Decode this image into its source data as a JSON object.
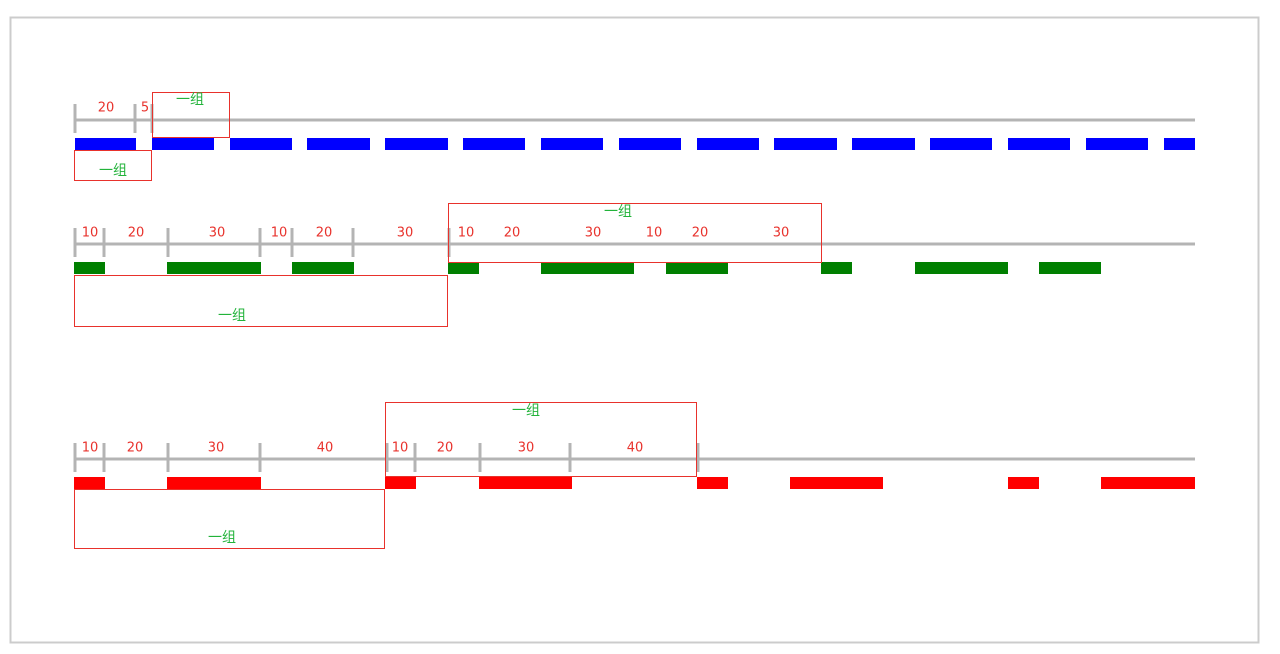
{
  "rows": [
    {
      "segments": [
        20,
        5
      ],
      "group_top": "一组",
      "group_bottom": "一组"
    },
    {
      "segments": [
        10,
        20,
        30,
        10,
        20,
        30,
        10,
        20,
        30,
        10,
        20,
        30
      ],
      "group_top": "一组",
      "group_bottom": "一组"
    },
    {
      "segments": [
        10,
        20,
        30,
        40,
        10,
        20,
        30,
        40
      ],
      "group_top": "一组",
      "group_bottom": "一组"
    }
  ]
}
